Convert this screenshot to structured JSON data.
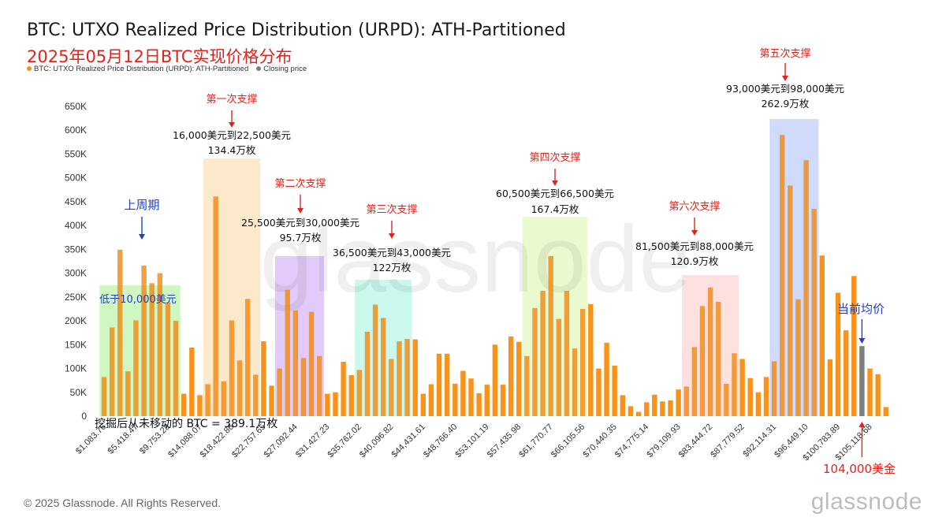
{
  "header": {
    "title": "BTC: UTXO Realized Price Distribution (URPD): ATH-Partitioned",
    "subtitle": "2025年05月12日BTC实现价格分布"
  },
  "legend": {
    "items": [
      {
        "label": "BTC: UTXO Realized Price Distribution (URPD): ATH-Partitioned",
        "color": "#f7931a"
      },
      {
        "label": "Closing price",
        "color": "#7f7f7f"
      }
    ]
  },
  "footer": {
    "copyright": "© 2025 Glassnode. All Rights Reserved.",
    "brand": "glassnode",
    "watermark": "glassnode"
  },
  "chart_data": {
    "type": "bar",
    "ylim": [
      0,
      650000
    ],
    "y_ticks": [
      {
        "value": 0,
        "label": "0"
      },
      {
        "value": 50000,
        "label": "50K"
      },
      {
        "value": 100000,
        "label": "100K"
      },
      {
        "value": 150000,
        "label": "150K"
      },
      {
        "value": 200000,
        "label": "200K"
      },
      {
        "value": 250000,
        "label": "250K"
      },
      {
        "value": 300000,
        "label": "300K"
      },
      {
        "value": 350000,
        "label": "350K"
      },
      {
        "value": 400000,
        "label": "400K"
      },
      {
        "value": 450000,
        "label": "450K"
      },
      {
        "value": 500000,
        "label": "500K"
      },
      {
        "value": 550000,
        "label": "550K"
      },
      {
        "value": 600000,
        "label": "600K"
      },
      {
        "value": 650000,
        "label": "650K"
      }
    ],
    "x_tick_labels": [
      {
        "index": 0,
        "label": "$1,083.76"
      },
      {
        "index": 4,
        "label": "$5,418.47"
      },
      {
        "index": 8,
        "label": "$9,753.28"
      },
      {
        "index": 12,
        "label": "$14,088.07"
      },
      {
        "index": 16,
        "label": "$18,422.86"
      },
      {
        "index": 20,
        "label": "$22,757.65"
      },
      {
        "index": 24,
        "label": "$27,092.44"
      },
      {
        "index": 28,
        "label": "$31,427.23"
      },
      {
        "index": 32,
        "label": "$35,762.02"
      },
      {
        "index": 36,
        "label": "$40,096.82"
      },
      {
        "index": 40,
        "label": "$44,431.61"
      },
      {
        "index": 44,
        "label": "$48,766.40"
      },
      {
        "index": 48,
        "label": "$53,101.19"
      },
      {
        "index": 52,
        "label": "$57,435.98"
      },
      {
        "index": 56,
        "label": "$61,770.77"
      },
      {
        "index": 60,
        "label": "$66,105.56"
      },
      {
        "index": 64,
        "label": "$70,440.35"
      },
      {
        "index": 68,
        "label": "$74,775.14"
      },
      {
        "index": 72,
        "label": "$79,109.93"
      },
      {
        "index": 76,
        "label": "$83,444.72"
      },
      {
        "index": 80,
        "label": "$87,779.52"
      },
      {
        "index": 84,
        "label": "$92,114.31"
      },
      {
        "index": 88,
        "label": "$96,449.10"
      },
      {
        "index": 92,
        "label": "$100,783.89"
      },
      {
        "index": 96,
        "label": "$105,118.68"
      }
    ],
    "values": [
      82000,
      186000,
      349000,
      94000,
      201000,
      316000,
      279000,
      300000,
      239000,
      200000,
      47000,
      144000,
      44000,
      67000,
      461000,
      73000,
      201000,
      117000,
      246000,
      87000,
      157000,
      64000,
      100000,
      265000,
      222000,
      122000,
      219000,
      126000,
      47000,
      50000,
      114000,
      86000,
      97000,
      177000,
      234000,
      206000,
      120000,
      157000,
      162000,
      161000,
      47000,
      67000,
      131000,
      131000,
      68000,
      95000,
      79000,
      48000,
      66000,
      150000,
      66000,
      167000,
      156000,
      126000,
      227000,
      263000,
      336000,
      204000,
      263000,
      142000,
      225000,
      235000,
      100000,
      154000,
      106000,
      44000,
      21000,
      9000,
      29000,
      45000,
      31000,
      33000,
      56000,
      62000,
      145000,
      231000,
      270000,
      240000,
      68000,
      132000,
      120000,
      80000,
      50000,
      82000,
      115000,
      590000,
      484000,
      245000,
      537000,
      435000,
      337000,
      119000,
      259000,
      180000,
      294000,
      147000,
      100000,
      88000,
      19000
    ],
    "series": [
      {
        "name": "BTC: UTXO Realized Price Distribution (URPD): ATH-Partitioned",
        "color": "#f7931a"
      },
      {
        "name": "Closing price",
        "color": "#7f7f7f"
      }
    ],
    "closing_price_bar_index": 95,
    "highlight_zones": [
      {
        "start": 0,
        "end": 9,
        "color": "#a8f08a",
        "label": "低于10,000美元",
        "heading": "上周期",
        "label_color": "#1f3fc8"
      },
      {
        "start": 13,
        "end": 19,
        "color": "#fad7a0",
        "heading": "第一次支撑",
        "label": "16,000美元到22,500美元",
        "amount": "134.4万枚"
      },
      {
        "start": 22,
        "end": 27,
        "color": "#caa0f5",
        "heading": "第二次支撑",
        "label": "25,500美元到30,000美元",
        "amount": "95.7万枚"
      },
      {
        "start": 32,
        "end": 38,
        "color": "#9ff2dc",
        "heading": "第三次支撑",
        "label": "36,500美元到43,000美元",
        "amount": "122万枚"
      },
      {
        "start": 53,
        "end": 60,
        "color": "#dbf5a6",
        "heading": "第四次支撑",
        "label": "60,500美元到66,500美元",
        "amount": "167.4万枚"
      },
      {
        "start": 73,
        "end": 79,
        "color": "#fbc8c8",
        "heading": "第六次支撑",
        "label": "81,500美元到88,000美元",
        "amount": "120.9万枚"
      },
      {
        "start": 84,
        "end": 89,
        "color": "#aabcf5",
        "heading": "第五次支撑",
        "label": "93,000美元到98,000美元",
        "amount": "262.9万枚"
      }
    ],
    "annotations": {
      "unmoved_note": "挖掘后从未移动的 BTC = 389.1万枚",
      "current_avg": "当前均价",
      "current_price": "104,000美金"
    }
  }
}
